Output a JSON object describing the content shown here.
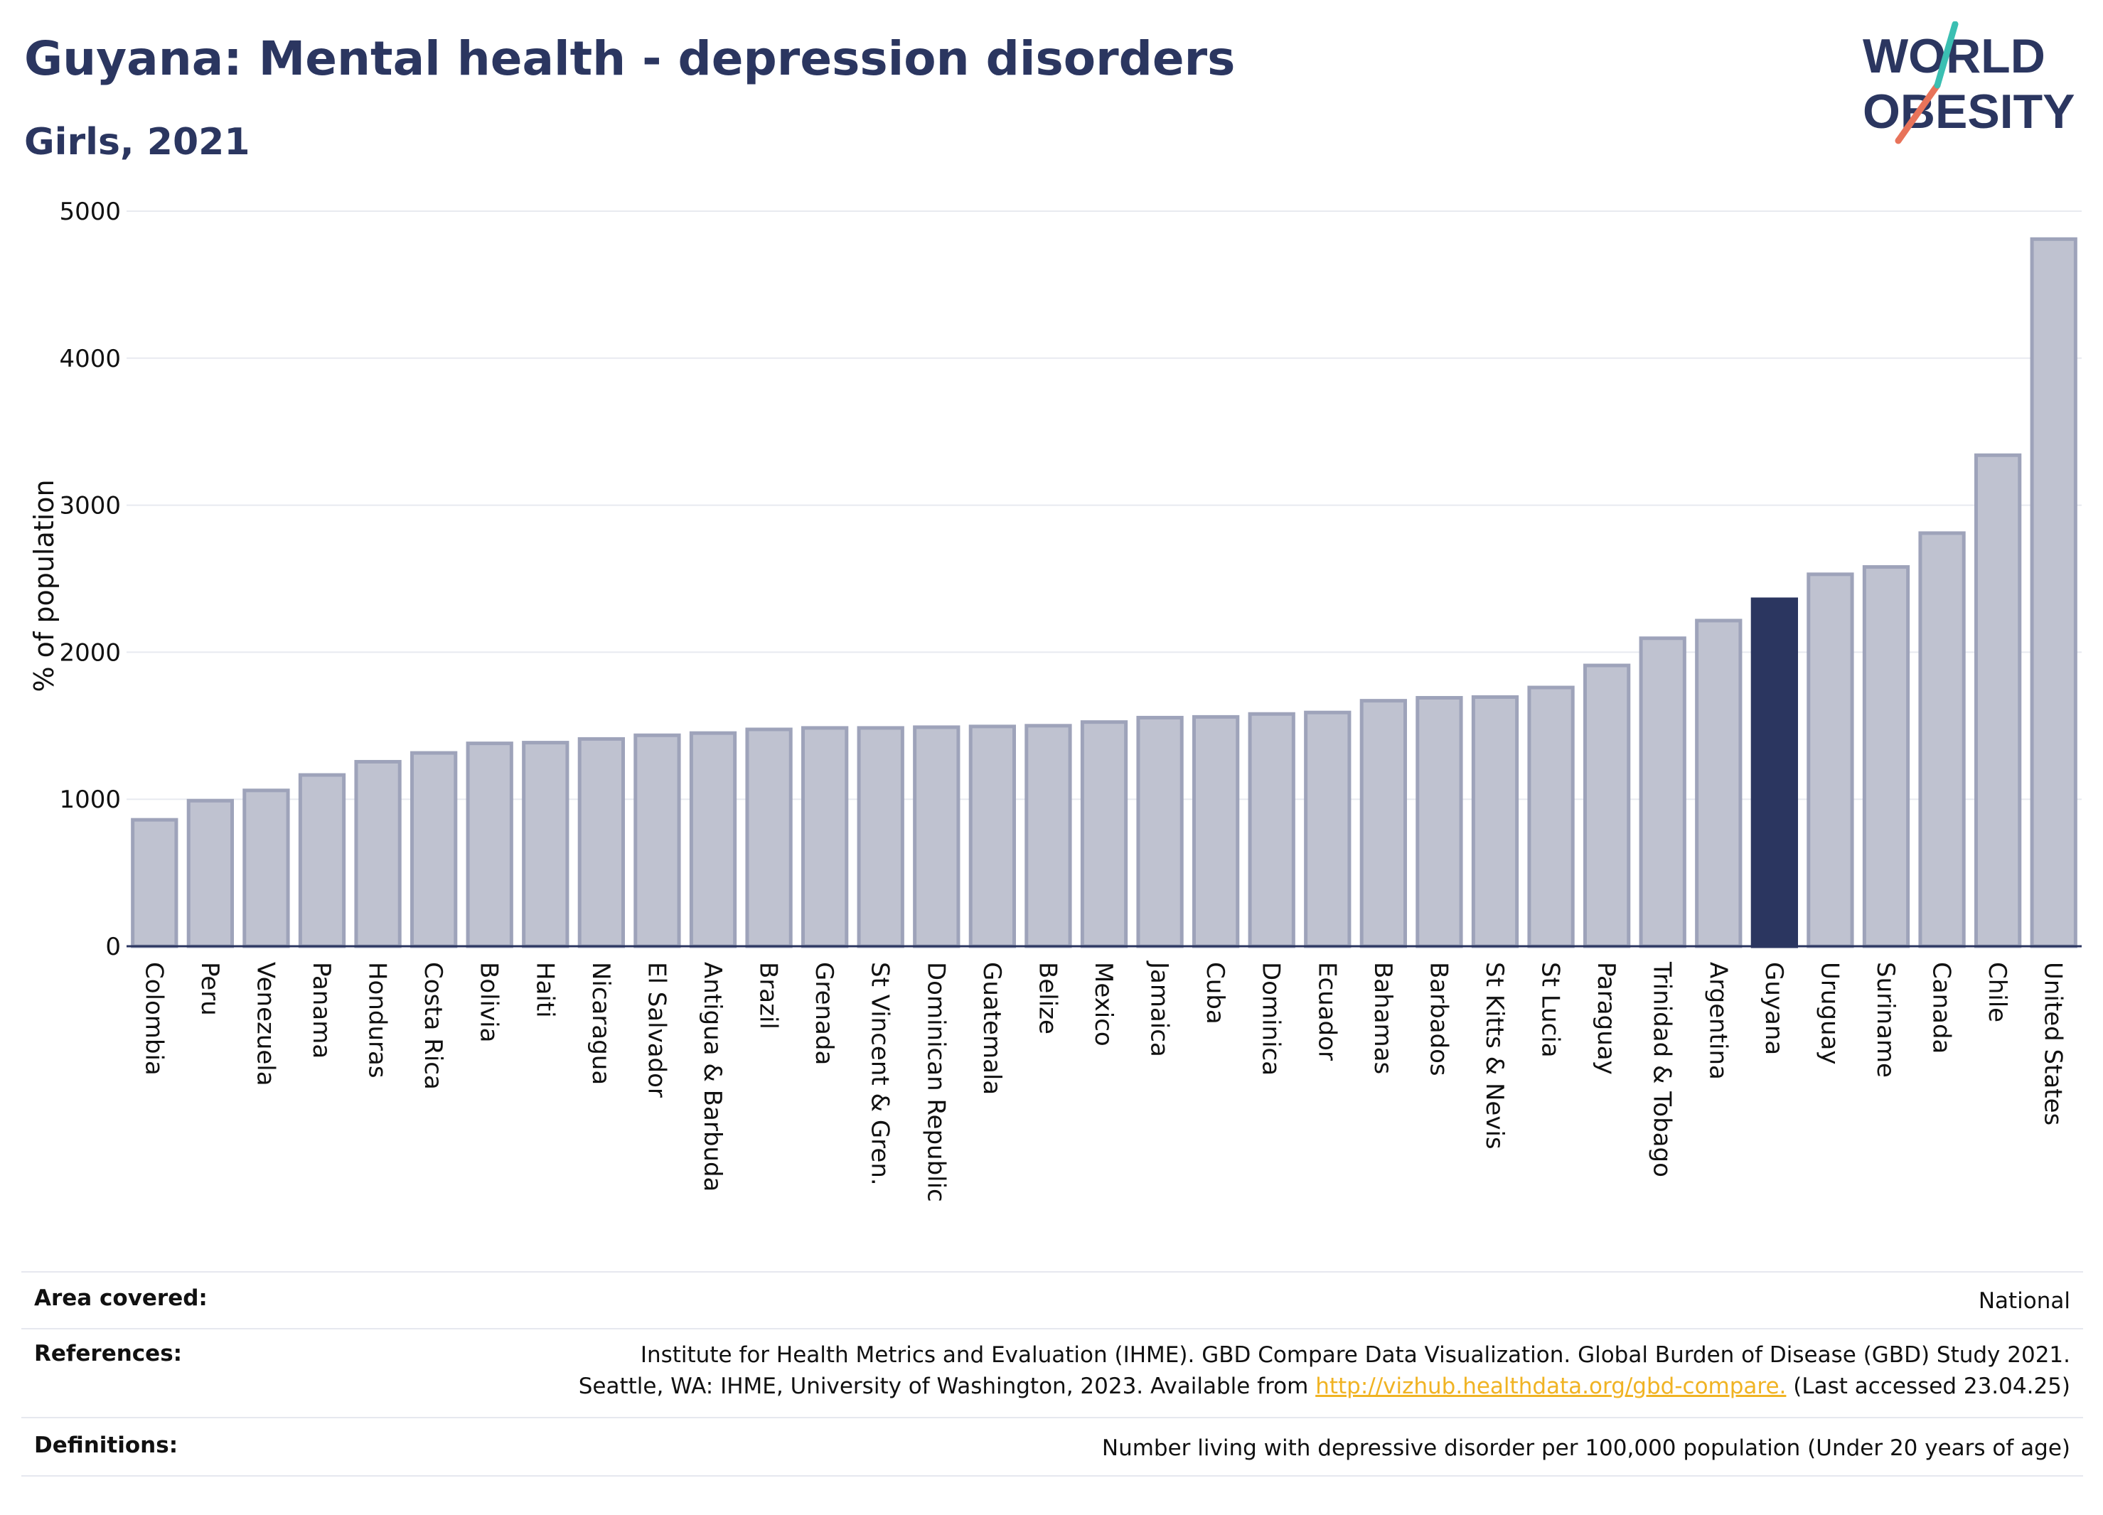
{
  "header": {
    "title": "Guyana: Mental health - depression disorders",
    "subtitle": "Girls, 2021"
  },
  "logo": {
    "line1": "WORLD",
    "line2": "OBESITY"
  },
  "chart_data": {
    "type": "bar",
    "ylabel": "% of population",
    "xlabel": "",
    "ylim": [
      0,
      5000
    ],
    "yticks": [
      0,
      1000,
      2000,
      3000,
      4000,
      5000
    ],
    "grid": true,
    "highlight": "Guyana",
    "colors": {
      "bar": "#bfc2d0",
      "bar_edge": "#9ea3ba",
      "highlight": "#2b3660",
      "grid": "#e8eaf0",
      "axis": "#2b3660"
    },
    "categories": [
      "Colombia",
      "Peru",
      "Venezuela",
      "Panama",
      "Honduras",
      "Costa Rica",
      "Bolivia",
      "Haiti",
      "Nicaragua",
      "El Salvador",
      "Antigua & Barbuda",
      "Brazil",
      "Grenada",
      "St Vincent & Gren.",
      "Dominican Republic",
      "Guatemala",
      "Belize",
      "Mexico",
      "Jamaica",
      "Cuba",
      "Dominica",
      "Ecuador",
      "Bahamas",
      "Barbados",
      "St Kitts & Nevis",
      "St Lucia",
      "Paraguay",
      "Trinidad & Tobago",
      "Argentina",
      "Guyana",
      "Uruguay",
      "Suriname",
      "Canada",
      "Chile",
      "United States"
    ],
    "values": [
      860,
      990,
      1060,
      1165,
      1255,
      1315,
      1380,
      1385,
      1410,
      1435,
      1450,
      1475,
      1485,
      1485,
      1490,
      1495,
      1500,
      1525,
      1555,
      1560,
      1580,
      1590,
      1670,
      1690,
      1695,
      1760,
      1910,
      2095,
      2215,
      2360,
      2530,
      2580,
      2810,
      3340,
      4810
    ]
  },
  "footer": {
    "area_label": "Area covered:",
    "area_value": "National",
    "references_label": "References:",
    "references_line1": "Institute for Health Metrics and Evaluation (IHME). GBD Compare Data Visualization. Global Burden of Disease (GBD) Study 2021.",
    "references_line2_pre": "Seattle, WA: IHME, University of Washington, 2023. Available from ",
    "references_link": "http://vizhub.healthdata.org/gbd-compare.",
    "references_line2_post": " (Last accessed 23.04.25)",
    "definitions_label": "Definitions:",
    "definitions_value": "Number living with depressive disorder per 100,000 population (Under 20 years of age)"
  }
}
